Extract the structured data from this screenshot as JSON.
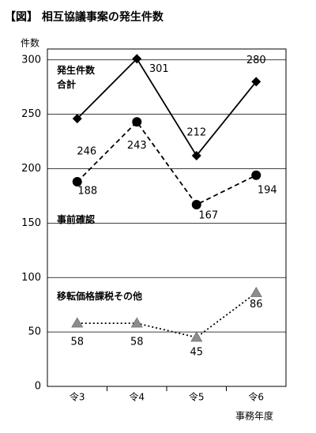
{
  "chart_data": {
    "type": "line",
    "title": "【図】 相互協議事案の発生件数",
    "y_label": "件数",
    "x_label": "事務年度",
    "categories": [
      "令3",
      "令4",
      "令5",
      "令6"
    ],
    "series": [
      {
        "name": "発生件数\n合計",
        "color": "#000000",
        "marker": "diamond",
        "line_style": "solid",
        "values": [
          246,
          301,
          212,
          280
        ]
      },
      {
        "name": "事前確認",
        "color": "#000000",
        "marker": "circle",
        "line_style": "dashed",
        "values": [
          188,
          243,
          167,
          194
        ]
      },
      {
        "name": "移転価格課税その他",
        "color": "#8c8c8c",
        "marker": "triangle",
        "line_style": "dotted",
        "values": [
          58,
          58,
          45,
          86
        ]
      }
    ],
    "ylim": [
      0,
      310
    ],
    "yticks": [
      0,
      50,
      100,
      150,
      200,
      250,
      300
    ],
    "grid": true
  }
}
